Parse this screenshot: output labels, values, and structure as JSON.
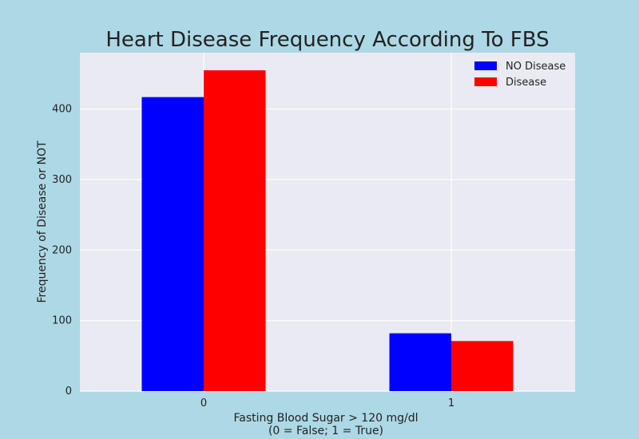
{
  "chart_data": {
    "type": "bar",
    "title": "Heart Disease Frequency According To FBS",
    "xlabel_lines": [
      "Fasting Blood Sugar > 120 mg/dl",
      "(0 = False; 1 = True)"
    ],
    "ylabel": "Frequency of Disease or NOT",
    "categories": [
      "0",
      "1"
    ],
    "series": [
      {
        "name": "NO Disease",
        "color": "#0000ff",
        "values": [
          417,
          82
        ]
      },
      {
        "name": "Disease",
        "color": "#ff0000",
        "values": [
          455,
          71
        ]
      }
    ],
    "ylim": [
      0,
      480
    ],
    "yticks": [
      0,
      100,
      200,
      300,
      400
    ],
    "grid": true,
    "legend_position": "top-right",
    "colors": {
      "page_background": "#add8e6",
      "plot_background": "#eaeaf2",
      "grid": "#ffffff"
    }
  }
}
